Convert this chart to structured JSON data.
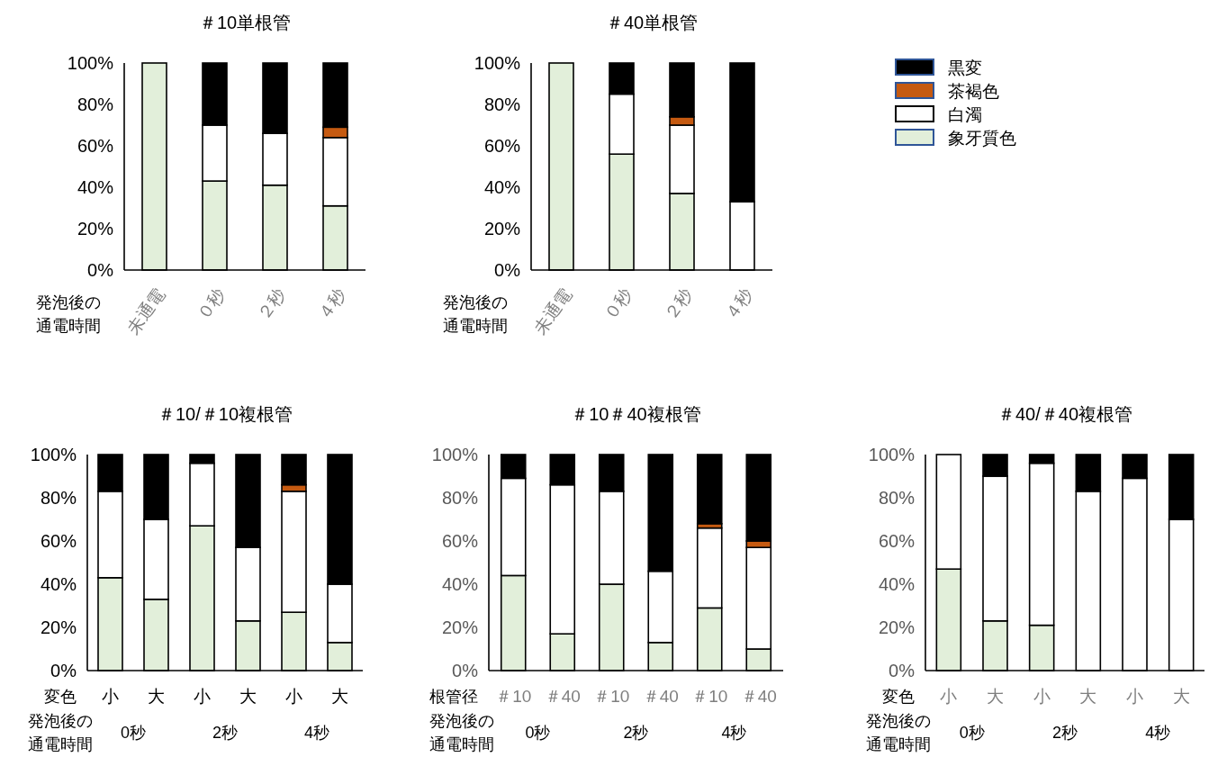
{
  "chart_data": [
    {
      "type": "bar",
      "stacked": true,
      "title": "＃10単根管",
      "xlabel": "発泡後の通電時間",
      "categories": [
        "未通電",
        "０秒",
        "２秒",
        "４秒"
      ],
      "ylim": [
        0,
        100
      ],
      "yticks": [
        {
          "value": 0,
          "label": "0%"
        },
        {
          "value": 20,
          "label": "20%"
        },
        {
          "value": 40,
          "label": "40%"
        },
        {
          "value": 60,
          "label": "60%"
        },
        {
          "value": 80,
          "label": "80%"
        },
        {
          "value": 100,
          "label": "100%"
        }
      ],
      "series": [
        {
          "color": "#e2efda",
          "values": [
            100,
            43,
            41,
            31
          ]
        },
        {
          "color": "#ffffff",
          "values": [
            0,
            27,
            25,
            33
          ]
        },
        {
          "color": "#c55a11",
          "values": [
            0,
            0,
            0,
            5
          ]
        },
        {
          "color": "#000000",
          "values": [
            0,
            30,
            34,
            31
          ]
        }
      ]
    },
    {
      "type": "bar",
      "stacked": true,
      "title": "＃40単根管",
      "xlabel": "発泡後の通電時間",
      "categories": [
        "未通電",
        "０秒",
        "２秒",
        "４秒"
      ],
      "legend": "right",
      "ylim": [
        0,
        100
      ],
      "yticks": [
        {
          "value": 0,
          "label": "0%"
        },
        {
          "value": 20,
          "label": "20%"
        },
        {
          "value": 40,
          "label": "40%"
        },
        {
          "value": 60,
          "label": "60%"
        },
        {
          "value": 80,
          "label": "80%"
        },
        {
          "value": 100,
          "label": "100%"
        }
      ],
      "series": [
        {
          "name": "象牙質色",
          "color": "#e2efda",
          "values": [
            100,
            56,
            37,
            0
          ]
        },
        {
          "name": "白濁",
          "color": "#ffffff",
          "values": [
            0,
            29,
            33,
            33
          ]
        },
        {
          "name": "茶褐色",
          "color": "#c55a11",
          "values": [
            0,
            0,
            4,
            0
          ]
        },
        {
          "name": "黒変",
          "color": "#000000",
          "values": [
            0,
            15,
            26,
            67
          ]
        }
      ]
    },
    {
      "type": "bar",
      "stacked": true,
      "title": "＃10/＃10複根管",
      "xlabel": "発泡後の通電時間",
      "annotations": [
        "変色",
        "0秒",
        "2秒",
        "4秒"
      ],
      "categories": [
        "小",
        "大",
        "小",
        "大",
        "小",
        "大"
      ],
      "ylim": [
        0,
        100
      ],
      "yticks": [
        {
          "value": 0,
          "label": "0%"
        },
        {
          "value": 20,
          "label": "20%"
        },
        {
          "value": 40,
          "label": "40%"
        },
        {
          "value": 60,
          "label": "60%"
        },
        {
          "value": 80,
          "label": "80%"
        },
        {
          "value": 100,
          "label": "100%"
        }
      ],
      "series": [
        {
          "color": "#e2efda",
          "values": [
            43,
            33,
            67,
            23,
            27,
            13
          ]
        },
        {
          "color": "#ffffff",
          "values": [
            40,
            37,
            29,
            34,
            56,
            27
          ]
        },
        {
          "color": "#c55a11",
          "values": [
            0,
            0,
            0,
            0,
            3,
            0
          ]
        },
        {
          "color": "#000000",
          "values": [
            17,
            30,
            4,
            43,
            14,
            60
          ]
        }
      ]
    },
    {
      "type": "bar",
      "stacked": true,
      "title": "＃10＃40複根管",
      "xlabel": "発泡後の通電時間",
      "annotations": [
        "根管径",
        "0秒",
        "2秒",
        "4秒"
      ],
      "categories": [
        "＃10",
        "＃40",
        "＃10",
        "＃40",
        "＃10",
        "＃40"
      ],
      "ylim": [
        0,
        100
      ],
      "yticks": [
        {
          "value": 0,
          "label": "0%"
        },
        {
          "value": 20,
          "label": "20%"
        },
        {
          "value": 40,
          "label": "40%"
        },
        {
          "value": 60,
          "label": "60%"
        },
        {
          "value": 80,
          "label": "80%"
        },
        {
          "value": 100,
          "label": "100%"
        }
      ],
      "series": [
        {
          "color": "#e2efda",
          "values": [
            44,
            17,
            40,
            13,
            29,
            10
          ]
        },
        {
          "color": "#ffffff",
          "values": [
            45,
            69,
            43,
            33,
            37,
            47
          ]
        },
        {
          "color": "#c55a11",
          "values": [
            0,
            0,
            0,
            0,
            2,
            3
          ]
        },
        {
          "color": "#000000",
          "values": [
            11,
            14,
            17,
            54,
            32,
            40
          ]
        }
      ]
    },
    {
      "type": "bar",
      "stacked": true,
      "title": "＃40/＃40複根管",
      "xlabel": "発泡後の通電時間",
      "annotations": [
        "変色",
        "0秒",
        "2秒",
        "4秒"
      ],
      "categories": [
        "小",
        "大",
        "小",
        "大",
        "小",
        "大"
      ],
      "ylim": [
        0,
        100
      ],
      "yticks": [
        {
          "value": 0,
          "label": "0%"
        },
        {
          "value": 20,
          "label": "20%"
        },
        {
          "value": 40,
          "label": "40%"
        },
        {
          "value": 60,
          "label": "60%"
        },
        {
          "value": 80,
          "label": "80%"
        },
        {
          "value": 100,
          "label": "100%"
        }
      ],
      "series": [
        {
          "color": "#e2efda",
          "values": [
            47,
            23,
            21,
            0,
            0,
            0
          ]
        },
        {
          "color": "#ffffff",
          "values": [
            53,
            67,
            75,
            83,
            89,
            70
          ]
        },
        {
          "color": "#000000",
          "values": [
            0,
            10,
            4,
            17,
            11,
            30
          ]
        }
      ]
    }
  ]
}
